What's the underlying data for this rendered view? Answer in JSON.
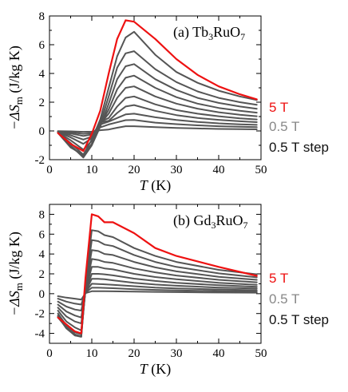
{
  "chart_data": [
    {
      "type": "line",
      "panel_label": "(a) Tb",
      "panel_formula_sub1": "3",
      "panel_formula_mid": "RuO",
      "panel_formula_sub2": "7",
      "ylabel_main": "−ΔS",
      "ylabel_sub": "m",
      "ylabel_unit": " (J/kg K)",
      "xlabel_main": "T",
      "xlabel_unit": " (K)",
      "xlim": [
        0,
        50
      ],
      "ylim": [
        -2,
        8
      ],
      "xticks": [
        0,
        10,
        20,
        30,
        40,
        50
      ],
      "yticks": [
        -2,
        0,
        2,
        4,
        6,
        8
      ],
      "xticklabels": [
        "0",
        "10",
        "20",
        "30",
        "40",
        "50"
      ],
      "yticklabels": [
        "-2",
        "0",
        "2",
        "4",
        "6",
        "8"
      ],
      "x": [
        2,
        5,
        8,
        10,
        12,
        14,
        16,
        18,
        20,
        25,
        30,
        35,
        40,
        45,
        49
      ],
      "series": [
        {
          "values": [
            -0.01,
            -0.03,
            -0.06,
            -0.05,
            0.05,
            0.1,
            0.22,
            0.33,
            0.33,
            0.26,
            0.21,
            0.17,
            0.14,
            0.12,
            0.11
          ],
          "color": "#555555"
        },
        {
          "values": [
            -0.03,
            -0.1,
            -0.2,
            -0.15,
            0.25,
            0.45,
            0.6,
            0.75,
            0.76,
            0.58,
            0.47,
            0.39,
            0.33,
            0.29,
            0.26
          ],
          "color": "#555555"
        },
        {
          "values": [
            -0.05,
            -0.18,
            -0.35,
            -0.25,
            0.45,
            0.65,
            0.9,
            1.15,
            1.2,
            0.95,
            0.76,
            0.63,
            0.53,
            0.46,
            0.42
          ],
          "color": "#555555"
        },
        {
          "values": [
            -0.07,
            -0.3,
            -0.6,
            -0.4,
            0.6,
            0.7,
            1.25,
            1.7,
            1.8,
            1.4,
            1.1,
            0.9,
            0.77,
            0.67,
            0.61
          ],
          "color": "#555555"
        },
        {
          "values": [
            -0.08,
            -0.45,
            -0.9,
            -0.5,
            0.62,
            0.9,
            1.7,
            2.3,
            2.4,
            1.85,
            1.45,
            1.2,
            1.02,
            0.88,
            0.8
          ],
          "color": "#555555"
        },
        {
          "values": [
            -0.1,
            -0.65,
            -1.3,
            -0.7,
            0.5,
            1.2,
            2.3,
            3.0,
            3.1,
            2.4,
            1.9,
            1.55,
            1.3,
            1.13,
            1.02
          ],
          "color": "#555555"
        },
        {
          "values": [
            -0.11,
            -0.85,
            -1.65,
            -0.9,
            0.4,
            1.5,
            2.9,
            3.7,
            3.85,
            3.0,
            2.35,
            1.9,
            1.6,
            1.4,
            1.27
          ],
          "color": "#555555"
        },
        {
          "values": [
            -0.12,
            -1.0,
            -1.85,
            -1.0,
            0.3,
            1.9,
            3.6,
            4.5,
            4.65,
            3.6,
            2.85,
            2.3,
            1.95,
            1.7,
            1.54
          ],
          "color": "#555555"
        },
        {
          "values": [
            -0.13,
            -1.1,
            -1.75,
            -0.9,
            0.5,
            2.4,
            4.4,
            5.4,
            5.55,
            4.3,
            3.4,
            2.75,
            2.3,
            2.0,
            1.82
          ],
          "color": "#555555"
        },
        {
          "values": [
            -0.14,
            -1.15,
            -1.65,
            -0.6,
            0.8,
            3.0,
            5.2,
            6.5,
            6.9,
            5.3,
            4.1,
            3.35,
            2.8,
            2.4,
            2.15
          ],
          "color": "#555555"
        },
        {
          "values": [
            -0.15,
            -0.9,
            -1.4,
            -0.2,
            1.4,
            4.0,
            6.4,
            7.7,
            7.6,
            6.4,
            5.0,
            3.9,
            3.1,
            2.55,
            2.2
          ],
          "color": "#ee1111"
        }
      ],
      "legend": [
        {
          "text": "5 T",
          "color": "#ee1111"
        },
        {
          "text": "0.5 T",
          "color": "#888888"
        },
        {
          "text": "0.5 T step",
          "color": "#111111"
        }
      ]
    },
    {
      "type": "line",
      "panel_label": "(b) Gd",
      "panel_formula_sub1": "3",
      "panel_formula_mid": "RuO",
      "panel_formula_sub2": "7",
      "ylabel_main": "−ΔS",
      "ylabel_sub": "m",
      "ylabel_unit": " (J/kg K)",
      "xlabel_main": "T",
      "xlabel_unit": " (K)",
      "xlim": [
        0,
        50
      ],
      "ylim": [
        -5,
        9
      ],
      "xticks": [
        0,
        10,
        20,
        30,
        40,
        50
      ],
      "yticks": [
        -4,
        -2,
        0,
        2,
        4,
        6,
        8
      ],
      "xticklabels": [
        "0",
        "10",
        "20",
        "30",
        "40",
        "50"
      ],
      "yticklabels": [
        "-4",
        "-2",
        "0",
        "2",
        "4",
        "6",
        "8"
      ],
      "x": [
        2,
        4,
        6,
        7.5,
        8.5,
        10,
        11.5,
        13,
        15,
        20,
        25,
        30,
        40,
        49
      ],
      "series": [
        {
          "values": [
            -0.25,
            -0.4,
            -0.5,
            -0.6,
            0.05,
            0.25,
            0.25,
            0.25,
            0.24,
            0.21,
            0.18,
            0.16,
            0.12,
            0.1
          ],
          "color": "#555555"
        },
        {
          "values": [
            -0.5,
            -0.8,
            -1.0,
            -1.1,
            0.1,
            0.6,
            0.6,
            0.58,
            0.55,
            0.45,
            0.38,
            0.33,
            0.26,
            0.22
          ],
          "color": "#555555"
        },
        {
          "values": [
            -0.8,
            -1.3,
            -1.6,
            -1.7,
            0.15,
            1.0,
            0.98,
            0.95,
            0.9,
            0.75,
            0.62,
            0.53,
            0.42,
            0.35
          ],
          "color": "#555555"
        },
        {
          "values": [
            -1.1,
            -1.8,
            -2.2,
            -2.4,
            0.2,
            1.5,
            1.5,
            1.45,
            1.35,
            1.1,
            0.92,
            0.8,
            0.62,
            0.52
          ],
          "color": "#555555"
        },
        {
          "values": [
            -1.4,
            -2.3,
            -2.8,
            -3.0,
            0.25,
            2.0,
            2.0,
            1.95,
            1.85,
            1.52,
            1.28,
            1.1,
            0.85,
            0.7
          ],
          "color": "#555555"
        },
        {
          "values": [
            -1.7,
            -2.8,
            -3.4,
            -3.7,
            0.3,
            2.7,
            2.7,
            2.55,
            2.45,
            2.0,
            1.68,
            1.45,
            1.1,
            0.9
          ],
          "color": "#555555"
        },
        {
          "values": [
            -2.0,
            -3.2,
            -3.9,
            -4.1,
            0.4,
            3.5,
            3.4,
            3.2,
            3.1,
            2.55,
            2.15,
            1.83,
            1.4,
            1.15
          ],
          "color": "#555555"
        },
        {
          "values": [
            -2.2,
            -3.4,
            -4.1,
            -4.3,
            0.6,
            4.4,
            4.3,
            4.0,
            3.9,
            3.2,
            2.65,
            2.25,
            1.7,
            1.4
          ],
          "color": "#555555"
        },
        {
          "values": [
            -2.3,
            -3.5,
            -4.2,
            -4.35,
            0.8,
            5.4,
            5.3,
            4.95,
            4.8,
            3.9,
            3.2,
            2.7,
            2.05,
            1.65
          ],
          "color": "#555555"
        },
        {
          "values": [
            -2.4,
            -3.4,
            -4.2,
            -4.3,
            1.2,
            6.4,
            6.3,
            5.9,
            5.7,
            4.6,
            3.8,
            3.2,
            2.4,
            1.95
          ],
          "color": "#555555"
        },
        {
          "values": [
            -2.4,
            -3.1,
            -3.8,
            -4.0,
            1.6,
            8.0,
            7.8,
            7.2,
            7.2,
            6.1,
            4.6,
            3.8,
            2.7,
            1.8
          ],
          "color": "#ee1111"
        }
      ],
      "legend": [
        {
          "text": "5 T",
          "color": "#ee1111"
        },
        {
          "text": "0.5 T",
          "color": "#888888"
        },
        {
          "text": "0.5 T step",
          "color": "#111111"
        }
      ]
    }
  ]
}
